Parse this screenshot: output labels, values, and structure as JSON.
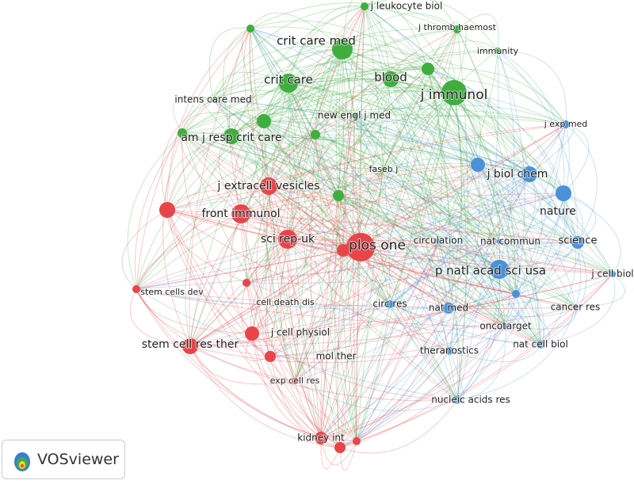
{
  "clusters": [
    {
      "color": "#3fae3f"
    },
    {
      "color": "#e8454a"
    },
    {
      "color": "#4a92d8"
    }
  ],
  "nodes": [
    {
      "label": "j leukocyte biol",
      "cluster": 0
    },
    {
      "label": "j thromb haemost",
      "cluster": 0
    },
    {
      "label": "crit care med",
      "cluster": 0
    },
    {
      "label": "immunity",
      "cluster": 0
    },
    {
      "label": "crit care",
      "cluster": 0
    },
    {
      "label": "blood",
      "cluster": 0
    },
    {
      "label": "j immunol",
      "cluster": 0
    },
    {
      "label": "intens care med",
      "cluster": 0
    },
    {
      "label": "new engl j med",
      "cluster": 0
    },
    {
      "label": "am j resp crit care",
      "cluster": 0
    },
    {
      "label": "faseb j",
      "cluster": 0
    },
    {
      "label": "j exp med",
      "cluster": 2
    },
    {
      "label": "j biol chem",
      "cluster": 2
    },
    {
      "label": "nature",
      "cluster": 2
    },
    {
      "label": "science",
      "cluster": 2
    },
    {
      "label": "circulation",
      "cluster": 2
    },
    {
      "label": "nat commun",
      "cluster": 2
    },
    {
      "label": "p natl acad sci usa",
      "cluster": 2
    },
    {
      "label": "j cell biol",
      "cluster": 2
    },
    {
      "label": "cancer res",
      "cluster": 2
    },
    {
      "label": "circ res",
      "cluster": 2
    },
    {
      "label": "nat med",
      "cluster": 2
    },
    {
      "label": "oncotarget",
      "cluster": 2
    },
    {
      "label": "nat cell biol",
      "cluster": 2
    },
    {
      "label": "theranostics",
      "cluster": 2
    },
    {
      "label": "nucleic acids res",
      "cluster": 2
    },
    {
      "label": "j extracell vesicles",
      "cluster": 1
    },
    {
      "label": "front immunol",
      "cluster": 1
    },
    {
      "label": "sci rep-uk",
      "cluster": 1
    },
    {
      "label": "plos one",
      "cluster": 1
    },
    {
      "label": "stem cells dev",
      "cluster": 1
    },
    {
      "label": "cell death dis",
      "cluster": 1
    },
    {
      "label": "j cell physiol",
      "cluster": 1
    },
    {
      "label": "stem cell res ther",
      "cluster": 1
    },
    {
      "label": "mol ther",
      "cluster": 1
    },
    {
      "label": "exp cell res",
      "cluster": 1
    },
    {
      "label": "kidney int",
      "cluster": 1
    }
  ],
  "logo": {
    "text": "VOSviewer"
  }
}
